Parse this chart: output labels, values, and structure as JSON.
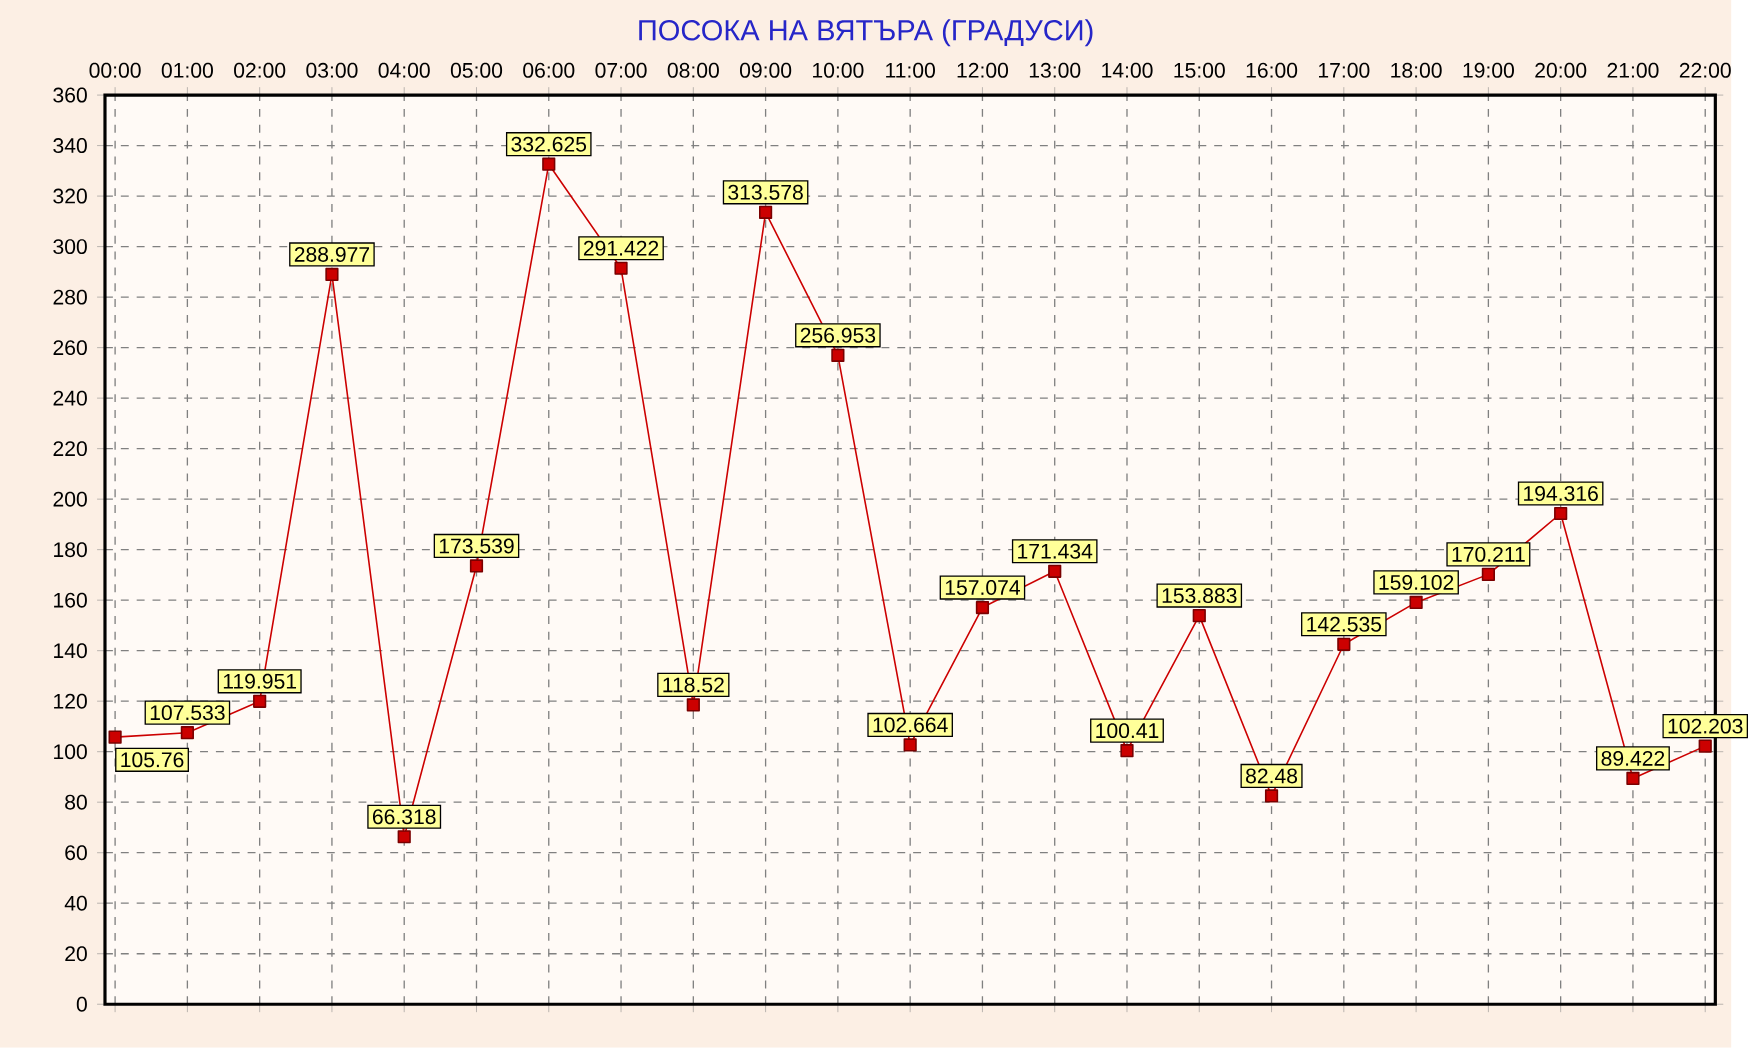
{
  "chart_data": {
    "type": "line",
    "title": "ПОСОКА НА ВЯТЪРА    (ГРАДУСИ)",
    "categories": [
      "00:00",
      "01:00",
      "02:00",
      "03:00",
      "04:00",
      "05:00",
      "06:00",
      "07:00",
      "08:00",
      "09:00",
      "10:00",
      "11:00",
      "12:00",
      "13:00",
      "14:00",
      "15:00",
      "16:00",
      "17:00",
      "18:00",
      "19:00",
      "20:00",
      "21:00",
      "22:00"
    ],
    "values": [
      105.76,
      107.533,
      119.951,
      288.977,
      66.318,
      173.539,
      332.625,
      291.422,
      118.52,
      313.578,
      256.953,
      102.664,
      157.074,
      171.434,
      100.41,
      153.883,
      82.48,
      142.535,
      159.102,
      170.211,
      194.316,
      89.422,
      102.203
    ],
    "color": "#cc0000",
    "marker": "square",
    "grid": true,
    "data_labels": true,
    "ylim": [
      0,
      360
    ],
    "yticks": [
      0,
      20,
      40,
      60,
      80,
      100,
      120,
      140,
      160,
      180,
      200,
      220,
      240,
      260,
      280,
      300,
      320,
      340,
      360
    ]
  }
}
